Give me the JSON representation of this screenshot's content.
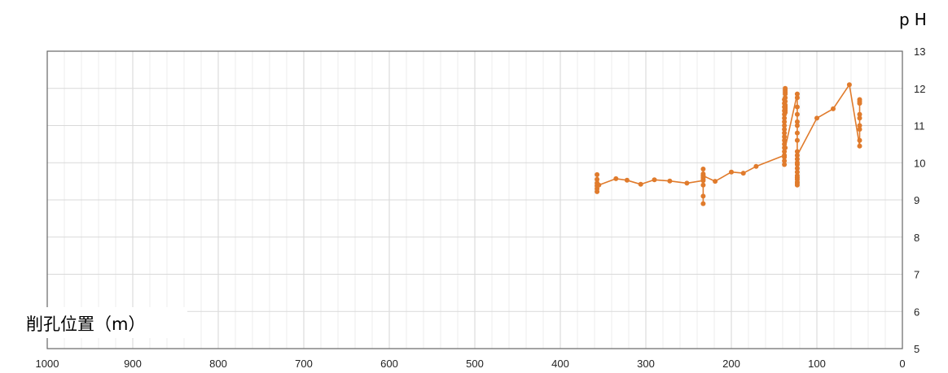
{
  "chart_data": {
    "type": "line",
    "xlabel": "削孔位置（m）",
    "ylabel": "pH",
    "xlim": [
      1000,
      0
    ],
    "ylim": [
      5,
      13
    ],
    "x_reversed": true,
    "x_ticks": [
      1000,
      900,
      800,
      700,
      600,
      500,
      400,
      300,
      200,
      100,
      0
    ],
    "y_ticks": [
      5,
      6,
      7,
      8,
      9,
      10,
      11,
      12,
      13
    ],
    "grid": true,
    "color": "#e07b2c",
    "x": [
      357,
      357,
      357,
      357,
      357,
      357,
      355,
      335,
      322,
      306,
      290,
      272,
      252,
      233,
      233,
      233,
      233,
      233,
      233,
      233,
      233,
      233,
      233,
      219,
      200,
      186,
      171,
      138,
      138,
      138,
      138,
      138,
      138,
      138,
      138,
      138,
      138,
      138,
      138,
      138,
      138,
      138,
      138,
      138,
      138,
      138,
      137,
      137,
      137,
      137,
      137,
      137,
      137,
      137,
      137,
      137,
      137,
      137,
      123,
      123,
      123,
      123,
      123,
      123,
      123,
      123,
      123,
      123,
      123,
      123,
      123,
      123,
      123,
      123,
      123,
      123,
      123,
      123,
      123,
      100,
      81,
      62,
      50,
      50,
      50,
      50,
      50,
      50,
      50,
      50,
      50
    ],
    "y": [
      9.22,
      9.3,
      9.38,
      9.45,
      9.55,
      9.68,
      9.4,
      9.57,
      9.53,
      9.42,
      9.54,
      9.51,
      9.45,
      9.52,
      8.9,
      9.1,
      9.4,
      9.55,
      9.6,
      9.65,
      9.7,
      9.83,
      9.65,
      9.5,
      9.75,
      9.72,
      9.9,
      10.2,
      9.95,
      10.05,
      10.15,
      10.3,
      10.4,
      10.5,
      10.6,
      10.7,
      10.8,
      10.9,
      11.0,
      11.1,
      11.2,
      11.3,
      11.4,
      11.5,
      11.6,
      11.7,
      11.9,
      12.0,
      11.95,
      11.85,
      11.75,
      11.65,
      11.55,
      11.5,
      11.45,
      11.4,
      11.35,
      10.4,
      11.85,
      11.75,
      11.5,
      11.3,
      11.1,
      11.0,
      10.8,
      10.6,
      10.3,
      10.1,
      10.0,
      9.95,
      9.85,
      9.75,
      9.65,
      9.55,
      9.48,
      9.4,
      9.45,
      9.6,
      10.2,
      11.2,
      11.45,
      12.1,
      10.45,
      10.6,
      10.9,
      11.2,
      11.3,
      11.6,
      11.7,
      11.65,
      11.0
    ]
  }
}
